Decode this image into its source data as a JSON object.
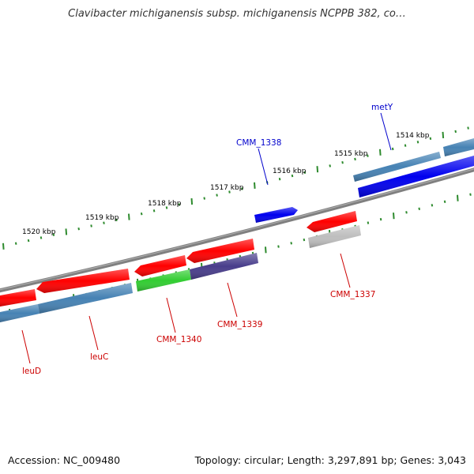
{
  "title": "Clavibacter michiganensis subsp. michiganensis NCPPB 382, co…",
  "footer": {
    "accession": "Accession: NC_009480",
    "summary": "Topology: circular; Length: 3,297,891 bp; Genes: 3,043"
  },
  "colors": {
    "backbone": "#808080",
    "tick": "#2e8b2e",
    "gene_red": "#ff0000",
    "gene_blue": "#0000ee",
    "gene_steel": "#4682b4",
    "gene_green": "#32cd32",
    "gene_purple": "#483d8b",
    "gene_gray": "#bebebe",
    "label_red": "#cc0000",
    "label_blue": "#0000cc"
  },
  "scale_labels": [
    {
      "label": "1514 kbp",
      "kbp": 1514
    },
    {
      "label": "1515 kbp",
      "kbp": 1515
    },
    {
      "label": "1516 kbp",
      "kbp": 1516
    },
    {
      "label": "1517 kbp",
      "kbp": 1517
    },
    {
      "label": "1518 kbp",
      "kbp": 1518
    },
    {
      "label": "1519 kbp",
      "kbp": 1519
    },
    {
      "label": "1520 kbp",
      "kbp": 1520
    }
  ],
  "gene_labels": [
    {
      "label": "metY",
      "color": "label_blue"
    },
    {
      "label": "CMM_1338",
      "color": "label_blue"
    },
    {
      "label": "CMM_1337",
      "color": "label_red"
    },
    {
      "label": "CMM_1339",
      "color": "label_red"
    },
    {
      "label": "CMM_1340",
      "color": "label_red"
    },
    {
      "label": "leuC",
      "color": "label_red"
    },
    {
      "label": "leuD",
      "color": "label_red"
    }
  ]
}
